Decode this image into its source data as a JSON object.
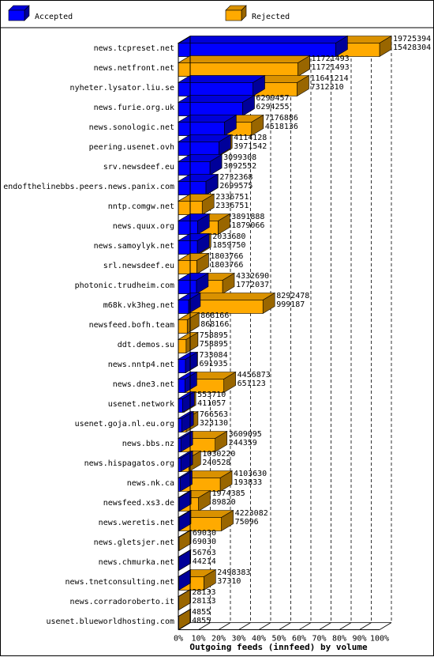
{
  "chart_data": {
    "type": "bar",
    "orientation": "horizontal",
    "stacked": false,
    "title": "Outgoing feeds (innfeed) by volume",
    "categories": [
      "news.tcpreset.net",
      "news.netfront.net",
      "nyheter.lysator.liu.se",
      "news.furie.org.uk",
      "news.sonologic.net",
      "peering.usenet.ovh",
      "srv.newsdeef.eu",
      "endofthelinebbs.peers.news.panix.com",
      "nntp.comgw.net",
      "news.quux.org",
      "news.samoylyk.net",
      "srl.newsdeef.eu",
      "photonic.trudheim.com",
      "m68k.vk3heg.net",
      "newsfeed.bofh.team",
      "ddt.demos.su",
      "news.nntp4.net",
      "news.dne3.net",
      "usenet.network",
      "usenet.goja.nl.eu.org",
      "news.bbs.nz",
      "news.hispagatos.org",
      "news.nk.ca",
      "newsfeed.xs3.de",
      "news.weretis.net",
      "news.gletsjer.net",
      "news.chmurka.net",
      "news.tnetconsulting.net",
      "news.corradoroberto.it",
      "usenet.blueworldhosting.com"
    ],
    "series": [
      {
        "name": "Accepted",
        "color": "#0000ff",
        "values": [
          15428304,
          11721493,
          7312310,
          6294255,
          4518136,
          3971542,
          3092552,
          2699575,
          2336751,
          1879066,
          1859750,
          1803766,
          1772037,
          999187,
          868166,
          758895,
          691935,
          651123,
          411057,
          323130,
          244359,
          240528,
          193833,
          89820,
          75096,
          69030,
          44214,
          37310,
          28133,
          4855
        ]
      },
      {
        "name": "Rejected",
        "color": "#ffaa00",
        "values": [
          19725394,
          11721493,
          11641214,
          6299457,
          7176886,
          4114128,
          3099308,
          2732368,
          2336751,
          3891888,
          2033680,
          1803766,
          4332690,
          8292478,
          868166,
          758895,
          733084,
          4456873,
          553710,
          766563,
          3609095,
          1030220,
          4103630,
          1974385,
          4223082,
          69030,
          56763,
          2498383,
          28133,
          4855
        ]
      }
    ],
    "xaxis": {
      "ticks": [
        "0%",
        "10%",
        "20%",
        "30%",
        "40%",
        "50%",
        "60%",
        "70%",
        "80%",
        "90%",
        "100%"
      ],
      "range": [
        0,
        100
      ],
      "grid": true
    },
    "legend_position": "top"
  }
}
